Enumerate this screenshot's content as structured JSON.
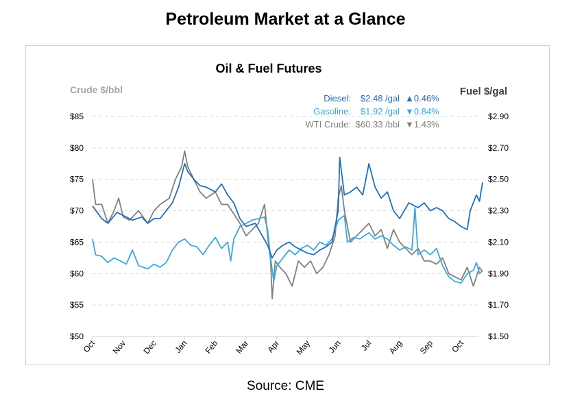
{
  "page_title": "Petroleum Market at a Glance",
  "source": "Source: CME",
  "colors": {
    "diesel": "#1f6fbf",
    "gasoline": "#3aa8e0",
    "crude": "#808080",
    "grid": "#d9d9d9"
  },
  "chart_data": {
    "type": "line",
    "title": "Oil & Fuel Futures",
    "ylabel_left": "Crude $/bbl",
    "ylabel_right": "Fuel $/gal",
    "ylim_left": [
      50,
      85
    ],
    "ylim_right": [
      1.5,
      2.9
    ],
    "yticks_left": [
      "$50",
      "$55",
      "$60",
      "$65",
      "$70",
      "$75",
      "$80",
      "$85"
    ],
    "yticks_right": [
      "$1.50",
      "$1.70",
      "$1.90",
      "$2.10",
      "$2.30",
      "$2.50",
      "$2.70",
      "$2.90"
    ],
    "xticks": [
      "Oct",
      "Nov",
      "Dec",
      "Jan",
      "Feb",
      "Mar",
      "Apr",
      "May",
      "Jun",
      "Jul",
      "Aug",
      "Sep",
      "Oct"
    ],
    "x_unit": "months since first Oct",
    "grid": "horizontal dashed",
    "legend": [
      {
        "name": "Diesel:",
        "price": "$2.48 /gal",
        "change": "▲0.46%",
        "color_key": "diesel"
      },
      {
        "name": "Gasoline:",
        "price": "$1.92 /gal",
        "change": "▼0.84%",
        "color_key": "gasoline"
      },
      {
        "name": "WTI Crude:",
        "price": "$60.33 /bbl",
        "change": "▼1.43%",
        "color_key": "crude"
      }
    ],
    "series": [
      {
        "name": "WTI Crude",
        "axis": "left",
        "color_key": "crude",
        "points": [
          [
            0,
            75
          ],
          [
            0.1,
            71
          ],
          [
            0.3,
            71
          ],
          [
            0.5,
            68
          ],
          [
            0.7,
            70
          ],
          [
            0.85,
            72
          ],
          [
            1.0,
            69
          ],
          [
            1.2,
            68.5
          ],
          [
            1.5,
            70
          ],
          [
            1.8,
            68
          ],
          [
            2.0,
            70
          ],
          [
            2.2,
            71
          ],
          [
            2.5,
            72
          ],
          [
            2.7,
            75
          ],
          [
            2.9,
            77
          ],
          [
            3.0,
            79.5
          ],
          [
            3.1,
            77
          ],
          [
            3.3,
            75
          ],
          [
            3.5,
            73
          ],
          [
            3.7,
            72
          ],
          [
            4.0,
            73
          ],
          [
            4.2,
            71
          ],
          [
            4.4,
            71
          ],
          [
            4.6,
            69.5
          ],
          [
            4.8,
            68
          ],
          [
            5.0,
            66
          ],
          [
            5.2,
            67
          ],
          [
            5.4,
            68
          ],
          [
            5.6,
            71
          ],
          [
            5.7,
            66
          ],
          [
            5.8,
            62
          ],
          [
            5.85,
            56
          ],
          [
            5.95,
            62
          ],
          [
            6.1,
            61
          ],
          [
            6.3,
            60
          ],
          [
            6.5,
            58
          ],
          [
            6.7,
            62
          ],
          [
            6.9,
            61
          ],
          [
            7.1,
            62
          ],
          [
            7.3,
            60
          ],
          [
            7.5,
            61
          ],
          [
            7.7,
            63
          ],
          [
            7.9,
            66
          ],
          [
            8.0,
            72
          ],
          [
            8.1,
            74
          ],
          [
            8.2,
            70
          ],
          [
            8.4,
            65
          ],
          [
            8.6,
            66
          ],
          [
            8.8,
            67
          ],
          [
            9.0,
            68
          ],
          [
            9.2,
            66
          ],
          [
            9.4,
            67
          ],
          [
            9.6,
            64
          ],
          [
            9.8,
            67
          ],
          [
            10.0,
            65
          ],
          [
            10.2,
            64
          ],
          [
            10.4,
            63
          ],
          [
            10.6,
            64
          ],
          [
            10.8,
            62
          ],
          [
            11.0,
            62
          ],
          [
            11.2,
            61.5
          ],
          [
            11.4,
            62.5
          ],
          [
            11.6,
            60
          ],
          [
            11.8,
            59.5
          ],
          [
            12.0,
            59
          ],
          [
            12.2,
            61
          ],
          [
            12.4,
            58
          ],
          [
            12.6,
            61
          ],
          [
            12.7,
            60.3
          ]
        ]
      },
      {
        "name": "Gasoline",
        "axis": "right",
        "color_key": "gasoline",
        "points": [
          [
            0,
            2.12
          ],
          [
            0.1,
            2.02
          ],
          [
            0.3,
            2.01
          ],
          [
            0.5,
            1.97
          ],
          [
            0.7,
            2.0
          ],
          [
            0.9,
            1.98
          ],
          [
            1.1,
            1.96
          ],
          [
            1.3,
            2.05
          ],
          [
            1.5,
            1.95
          ],
          [
            1.8,
            1.93
          ],
          [
            2.0,
            1.96
          ],
          [
            2.2,
            1.94
          ],
          [
            2.4,
            1.97
          ],
          [
            2.6,
            2.05
          ],
          [
            2.8,
            2.1
          ],
          [
            3.0,
            2.12
          ],
          [
            3.2,
            2.08
          ],
          [
            3.4,
            2.07
          ],
          [
            3.6,
            2.02
          ],
          [
            3.8,
            2.08
          ],
          [
            4.0,
            2.13
          ],
          [
            4.2,
            2.06
          ],
          [
            4.4,
            2.1
          ],
          [
            4.5,
            1.98
          ],
          [
            4.6,
            2.12
          ],
          [
            4.8,
            2.2
          ],
          [
            5.0,
            2.22
          ],
          [
            5.2,
            2.24
          ],
          [
            5.4,
            2.25
          ],
          [
            5.6,
            2.26
          ],
          [
            5.7,
            2.18
          ],
          [
            5.8,
            2.0
          ],
          [
            5.9,
            1.85
          ],
          [
            6.0,
            1.95
          ],
          [
            6.2,
            2.0
          ],
          [
            6.4,
            2.05
          ],
          [
            6.6,
            2.02
          ],
          [
            6.8,
            2.06
          ],
          [
            7.0,
            2.08
          ],
          [
            7.2,
            2.05
          ],
          [
            7.4,
            2.1
          ],
          [
            7.6,
            2.08
          ],
          [
            7.8,
            2.12
          ],
          [
            8.0,
            2.24
          ],
          [
            8.2,
            2.27
          ],
          [
            8.3,
            2.1
          ],
          [
            8.5,
            2.13
          ],
          [
            8.7,
            2.12
          ],
          [
            9.0,
            2.16
          ],
          [
            9.2,
            2.12
          ],
          [
            9.4,
            2.14
          ],
          [
            9.6,
            2.12
          ],
          [
            9.8,
            2.08
          ],
          [
            10.0,
            2.05
          ],
          [
            10.2,
            2.07
          ],
          [
            10.4,
            2.05
          ],
          [
            10.5,
            2.32
          ],
          [
            10.6,
            2.02
          ],
          [
            10.8,
            2.05
          ],
          [
            11.0,
            2.02
          ],
          [
            11.2,
            2.06
          ],
          [
            11.4,
            1.95
          ],
          [
            11.6,
            1.88
          ],
          [
            11.8,
            1.85
          ],
          [
            12.0,
            1.84
          ],
          [
            12.2,
            1.9
          ],
          [
            12.4,
            1.92
          ],
          [
            12.5,
            1.97
          ],
          [
            12.6,
            1.9
          ],
          [
            12.7,
            1.92
          ]
        ]
      },
      {
        "name": "Diesel",
        "axis": "right",
        "color_key": "diesel",
        "points": [
          [
            0,
            2.33
          ],
          [
            0.3,
            2.25
          ],
          [
            0.5,
            2.22
          ],
          [
            0.8,
            2.29
          ],
          [
            1.0,
            2.27
          ],
          [
            1.3,
            2.24
          ],
          [
            1.6,
            2.26
          ],
          [
            1.8,
            2.22
          ],
          [
            2.0,
            2.25
          ],
          [
            2.2,
            2.25
          ],
          [
            2.4,
            2.3
          ],
          [
            2.6,
            2.35
          ],
          [
            2.8,
            2.45
          ],
          [
            3.0,
            2.6
          ],
          [
            3.1,
            2.55
          ],
          [
            3.3,
            2.5
          ],
          [
            3.5,
            2.46
          ],
          [
            3.7,
            2.45
          ],
          [
            4.0,
            2.42
          ],
          [
            4.2,
            2.47
          ],
          [
            4.4,
            2.4
          ],
          [
            4.6,
            2.35
          ],
          [
            4.8,
            2.25
          ],
          [
            5.0,
            2.2
          ],
          [
            5.3,
            2.22
          ],
          [
            5.5,
            2.15
          ],
          [
            5.7,
            2.08
          ],
          [
            5.85,
            2.0
          ],
          [
            6.0,
            2.05
          ],
          [
            6.2,
            2.08
          ],
          [
            6.4,
            2.1
          ],
          [
            6.6,
            2.07
          ],
          [
            6.8,
            2.05
          ],
          [
            7.0,
            2.03
          ],
          [
            7.2,
            2.02
          ],
          [
            7.4,
            2.05
          ],
          [
            7.6,
            2.07
          ],
          [
            7.8,
            2.1
          ],
          [
            8.0,
            2.3
          ],
          [
            8.05,
            2.64
          ],
          [
            8.2,
            2.4
          ],
          [
            8.4,
            2.42
          ],
          [
            8.6,
            2.45
          ],
          [
            8.8,
            2.4
          ],
          [
            9.0,
            2.6
          ],
          [
            9.2,
            2.45
          ],
          [
            9.4,
            2.38
          ],
          [
            9.6,
            2.42
          ],
          [
            9.8,
            2.3
          ],
          [
            10.0,
            2.25
          ],
          [
            10.3,
            2.35
          ],
          [
            10.6,
            2.32
          ],
          [
            10.8,
            2.35
          ],
          [
            11.0,
            2.3
          ],
          [
            11.2,
            2.32
          ],
          [
            11.4,
            2.3
          ],
          [
            11.6,
            2.25
          ],
          [
            11.8,
            2.23
          ],
          [
            12.0,
            2.2
          ],
          [
            12.2,
            2.18
          ],
          [
            12.3,
            2.3
          ],
          [
            12.5,
            2.4
          ],
          [
            12.6,
            2.36
          ],
          [
            12.7,
            2.48
          ]
        ]
      }
    ]
  }
}
